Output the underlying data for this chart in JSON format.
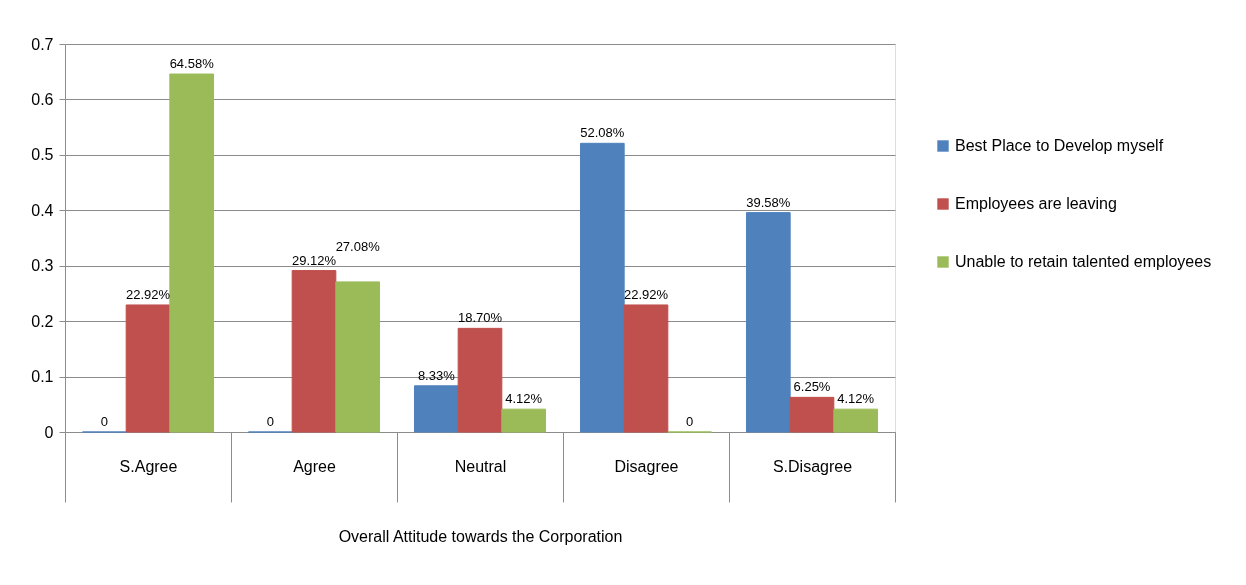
{
  "chart_data": {
    "type": "bar",
    "categories": [
      "S.Agree",
      "Agree",
      "Neutral",
      "Disagree",
      "S.Disagree"
    ],
    "xlabel": "Overall Attitude towards the Corporation",
    "series": [
      {
        "name": "Best Place to Develop myself",
        "color": "#4f81bd",
        "values": [
          0,
          0,
          0.0833,
          0.5208,
          0.3958
        ],
        "value_labels": [
          "0",
          "0",
          "8.33%",
          "52.08%",
          "39.58%"
        ]
      },
      {
        "name": "Employees are leaving",
        "color": "#c0504d",
        "values": [
          0.2292,
          0.2912,
          0.187,
          0.2292,
          0.0625
        ],
        "value_labels": [
          "22.92%",
          "29.12%",
          "18.70%",
          "22.92%",
          "6.25%"
        ]
      },
      {
        "name": "Unable to retain talented employees",
        "color": "#9bbb59",
        "values": [
          0.6458,
          0.2708,
          0.0412,
          0,
          0.0412
        ],
        "value_labels": [
          "64.58%",
          "27.08%",
          "4.12%",
          "0",
          "4.12%"
        ]
      }
    ],
    "ylim": [
      0,
      0.7
    ],
    "yticks": [
      0,
      0.1,
      0.2,
      0.3,
      0.4,
      0.5,
      0.6,
      0.7
    ],
    "grid": "y",
    "legend": "right"
  }
}
